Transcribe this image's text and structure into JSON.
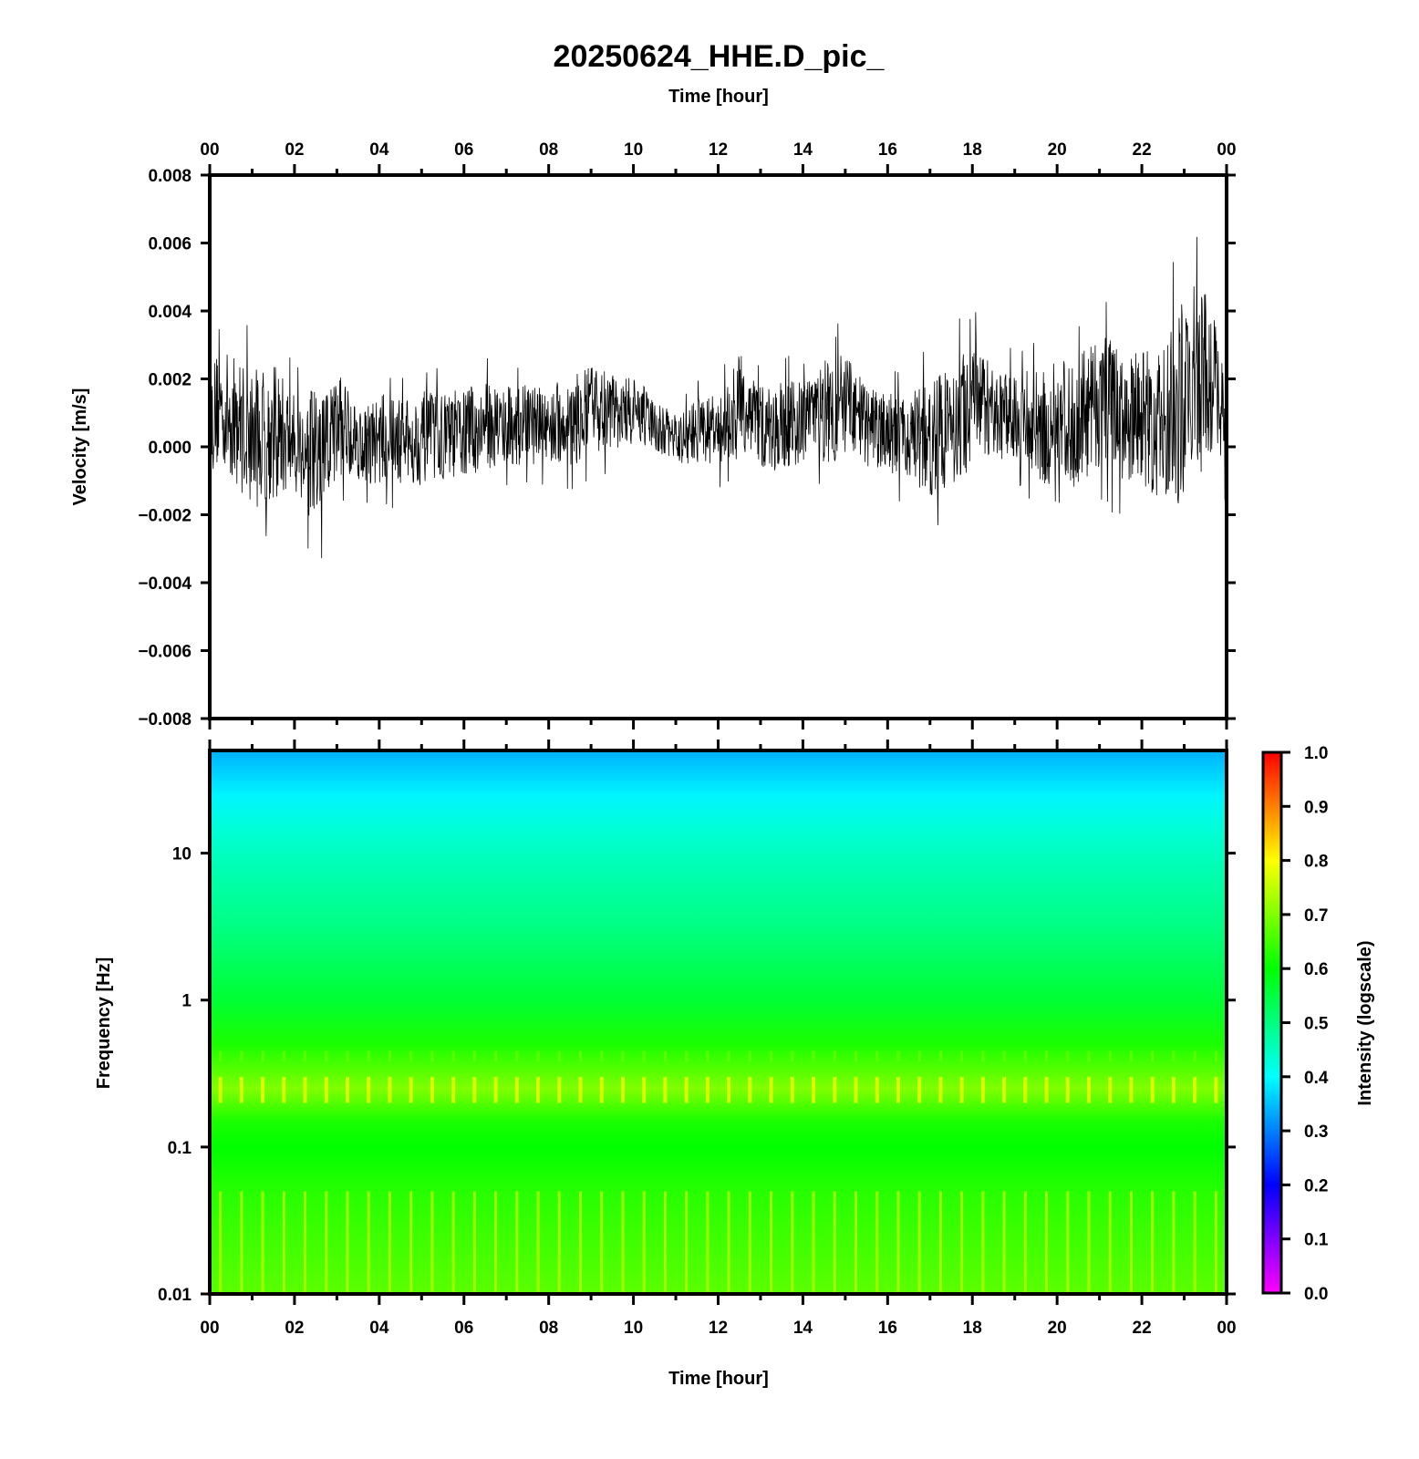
{
  "chart_data": [
    {
      "type": "line",
      "title": "20250624_HHE.D_pic_",
      "xlabel": "Time [hour]",
      "ylabel": "Velocity [m/s]",
      "x_ticks": [
        "00",
        "02",
        "04",
        "06",
        "08",
        "10",
        "12",
        "14",
        "16",
        "18",
        "20",
        "22",
        "00"
      ],
      "xlim": [
        0,
        24
      ],
      "ylim": [
        -0.008,
        0.008
      ],
      "y_ticks": [
        "0.008",
        "0.006",
        "0.004",
        "0.002",
        "0.000",
        "−0.002",
        "−0.004",
        "−0.006",
        "−0.008"
      ],
      "series": [
        {
          "color": "#000000",
          "x": [
            0,
            0.5,
            1,
            1.5,
            2,
            2.5,
            3,
            3.5,
            4,
            4.5,
            5,
            5.5,
            6,
            6.5,
            7,
            7.5,
            8,
            8.5,
            9,
            9.5,
            10,
            10.5,
            11,
            11.5,
            12,
            12.5,
            13,
            13.5,
            14,
            14.5,
            15,
            15.5,
            16,
            16.5,
            17,
            17.5,
            18,
            18.5,
            19,
            19.5,
            20,
            20.5,
            21,
            21.5,
            22,
            22.5,
            23,
            23.5,
            24
          ],
          "y_max": [
            0.004,
            0.0037,
            0.0036,
            0.0037,
            0.0024,
            0.003,
            0.0034,
            0.0018,
            0.0024,
            0.0021,
            0.0025,
            0.0023,
            0.0026,
            0.0027,
            0.0026,
            0.0025,
            0.0025,
            0.0029,
            0.0033,
            0.0028,
            0.0026,
            0.0018,
            0.0013,
            0.0022,
            0.002,
            0.0039,
            0.0024,
            0.0028,
            0.0026,
            0.0037,
            0.0037,
            0.0024,
            0.0024,
            0.0022,
            0.0032,
            0.0034,
            0.0045,
            0.0028,
            0.003,
            0.0031,
            0.0038,
            0.004,
            0.0048,
            0.0039,
            0.0041,
            0.0043,
            0.0067,
            0.0066,
            0.0022
          ],
          "y_min": [
            -0.0012,
            -0.0022,
            -0.0031,
            -0.0029,
            -0.0023,
            -0.0041,
            -0.0017,
            -0.0018,
            -0.0018,
            -0.0019,
            -0.0019,
            -0.0017,
            -0.0017,
            -0.0014,
            -0.0013,
            -0.0012,
            -0.0012,
            -0.0014,
            -0.001,
            -0.0008,
            -0.0005,
            -0.0008,
            -0.0009,
            -0.001,
            -0.0012,
            -0.0011,
            -0.0016,
            -0.0014,
            -0.0012,
            -0.0013,
            -0.0016,
            -0.0014,
            -0.0016,
            -0.0017,
            -0.0025,
            -0.0021,
            -0.0015,
            -0.0012,
            -0.001,
            -0.002,
            -0.003,
            -0.0023,
            -0.0016,
            -0.0022,
            -0.0026,
            -0.0032,
            -0.0033,
            -0.0021,
            -0.0016
          ]
        }
      ]
    },
    {
      "type": "heatmap",
      "xlabel": "Time [hour]",
      "ylabel": "Frequency [Hz]",
      "x_ticks": [
        "00",
        "02",
        "04",
        "06",
        "08",
        "10",
        "12",
        "14",
        "16",
        "18",
        "20",
        "22",
        "00"
      ],
      "xlim": [
        0,
        24
      ],
      "y_scale": "log",
      "ylim": [
        0.01,
        50
      ],
      "y_ticks": [
        "10",
        "1",
        "0.1",
        "0.01"
      ],
      "frequency_profile": [
        {
          "freq": 50,
          "intensity": 0.33
        },
        {
          "freq": 35,
          "intensity": 0.36
        },
        {
          "freq": 25,
          "intensity": 0.39
        },
        {
          "freq": 15,
          "intensity": 0.43
        },
        {
          "freq": 8,
          "intensity": 0.46
        },
        {
          "freq": 3,
          "intensity": 0.5
        },
        {
          "freq": 1,
          "intensity": 0.56
        },
        {
          "freq": 0.5,
          "intensity": 0.62
        },
        {
          "freq": 0.25,
          "intensity": 0.7
        },
        {
          "freq": 0.15,
          "intensity": 0.62
        },
        {
          "freq": 0.1,
          "intensity": 0.6
        },
        {
          "freq": 0.05,
          "intensity": 0.63
        },
        {
          "freq": 0.01,
          "intensity": 0.67
        }
      ],
      "colorbar": {
        "label": "Intensity (logscale)",
        "range": [
          0.0,
          1.0
        ],
        "ticks": [
          "1.0",
          "0.9",
          "0.8",
          "0.7",
          "0.6",
          "0.5",
          "0.4",
          "0.3",
          "0.2",
          "0.1",
          "0.0"
        ],
        "colors": [
          "#ff00ff",
          "#7a00ff",
          "#0000ff",
          "#0090ff",
          "#00ffff",
          "#00ff80",
          "#00ff00",
          "#80ff00",
          "#ffff00",
          "#ff8000",
          "#ff0000"
        ]
      }
    }
  ]
}
